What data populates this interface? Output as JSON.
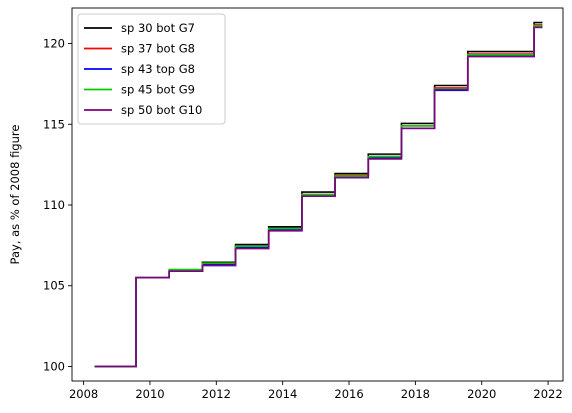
{
  "chart_data": {
    "type": "line",
    "drawstyle": "steps-post",
    "title": "",
    "xlabel": "",
    "ylabel": "Pay, as % of 2008 figure",
    "xlim": [
      2007.65,
      2022.45
    ],
    "ylim": [
      99.1,
      122.2
    ],
    "xticks": [
      2008,
      2010,
      2012,
      2014,
      2016,
      2018,
      2020,
      2022
    ],
    "yticks": [
      100,
      105,
      110,
      115,
      120
    ],
    "grid": false,
    "legend_position": "upper left",
    "x": [
      2008.33,
      2009.58,
      2010.58,
      2011.58,
      2012.58,
      2013.58,
      2014.58,
      2015.58,
      2016.58,
      2017.58,
      2018.58,
      2019.58,
      2021.58,
      2021.83
    ],
    "series": [
      {
        "name": "sp 30 bot G7",
        "color": "#000000",
        "values": [
          100.0,
          105.5,
          105.9,
          106.45,
          107.55,
          108.65,
          110.8,
          111.95,
          113.15,
          115.05,
          117.4,
          119.5,
          121.3,
          121.3
        ]
      },
      {
        "name": "sp 37 bot G8",
        "color": "#ff0000",
        "values": [
          100.0,
          105.5,
          105.9,
          106.35,
          107.45,
          108.55,
          110.65,
          111.85,
          113.0,
          114.9,
          117.25,
          119.35,
          121.15,
          121.15
        ]
      },
      {
        "name": "sp 43 top G8",
        "color": "#0000ff",
        "values": [
          100.0,
          105.5,
          105.9,
          106.3,
          107.35,
          108.45,
          110.55,
          111.7,
          112.9,
          114.75,
          117.1,
          119.2,
          121.0,
          121.0
        ]
      },
      {
        "name": "sp 45 bot G9",
        "color": "#00cc00",
        "values": [
          100.0,
          105.5,
          106.0,
          106.4,
          107.45,
          108.55,
          110.65,
          111.8,
          113.0,
          114.9,
          117.2,
          119.3,
          121.1,
          121.1
        ]
      },
      {
        "name": "sp 50 bot G10",
        "color": "#800080",
        "values": [
          100.0,
          105.5,
          105.9,
          106.25,
          107.3,
          108.4,
          110.55,
          111.7,
          112.85,
          114.75,
          117.15,
          119.2,
          121.0,
          121.0
        ]
      }
    ]
  }
}
